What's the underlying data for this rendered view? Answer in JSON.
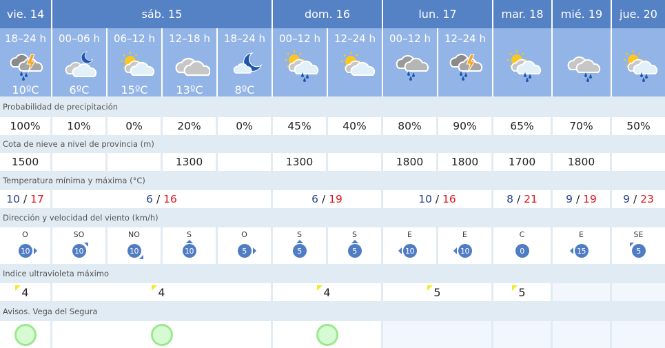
{
  "days": [
    {
      "label": "vie. 14",
      "span": 1
    },
    {
      "label": "sáb. 15",
      "span": 4
    },
    {
      "label": "dom. 16",
      "span": 2
    },
    {
      "label": "lun. 17",
      "span": 2
    },
    {
      "label": "mar. 18",
      "span": 1
    },
    {
      "label": "mié. 19",
      "span": 1
    },
    {
      "label": "jue. 20",
      "span": 1
    }
  ],
  "periods": [
    {
      "label": "18–24 h",
      "icon": "storm-rain",
      "temp": "10ºC"
    },
    {
      "label": "00–06 h",
      "icon": "night-partly-cloudy",
      "temp": "6ºC"
    },
    {
      "label": "06–12 h",
      "icon": "sun-clouds",
      "temp": "15ºC"
    },
    {
      "label": "12–18 h",
      "icon": "cloudy",
      "temp": "13ºC"
    },
    {
      "label": "18–24 h",
      "icon": "moon-cloud",
      "temp": "8ºC"
    },
    {
      "label": "00–12 h",
      "icon": "sun-cloud-rain",
      "temp": ""
    },
    {
      "label": "12–24 h",
      "icon": "sun-clouds",
      "temp": ""
    },
    {
      "label": "00–12 h",
      "icon": "rain-clouds",
      "temp": ""
    },
    {
      "label": "12–24 h",
      "icon": "storm-rain",
      "temp": ""
    },
    {
      "label": "",
      "icon": "sun-cloud-rain",
      "temp": ""
    },
    {
      "label": "",
      "icon": "cloudy-light-rain",
      "temp": ""
    },
    {
      "label": "",
      "icon": "sun-cloud-rain",
      "temp": ""
    }
  ],
  "labels": {
    "precip": "Probabilidad de precipitación",
    "snow": "Cota de nieve a nivel de provincia (m)",
    "temp": "Temperatura mínima y máxima (°C)",
    "wind": "Dirección y velocidad del viento (km/h)",
    "uv": "Indice ultravioleta máximo",
    "warnings": "Avisos. Vega del Segura"
  },
  "precip": [
    "100%",
    "10%",
    "0%",
    "20%",
    "0%",
    "45%",
    "40%",
    "80%",
    "90%",
    "65%",
    "70%",
    "50%"
  ],
  "snow": [
    "1500",
    "",
    "",
    "1300",
    "",
    "1300",
    "",
    "1800",
    "1800",
    "1700",
    "1800",
    ""
  ],
  "temps": [
    {
      "min": "10",
      "max": "17",
      "span": 1
    },
    {
      "min": "6",
      "max": "16",
      "span": 4
    },
    {
      "min": "6",
      "max": "19",
      "span": 2
    },
    {
      "min": "10",
      "max": "16",
      "span": 2
    },
    {
      "min": "8",
      "max": "21",
      "span": 1
    },
    {
      "min": "9",
      "max": "19",
      "span": 1
    },
    {
      "min": "9",
      "max": "23",
      "span": 1
    }
  ],
  "wind": [
    {
      "dir": "O",
      "speed": "10"
    },
    {
      "dir": "SO",
      "speed": "10"
    },
    {
      "dir": "NO",
      "speed": "10"
    },
    {
      "dir": "S",
      "speed": "10"
    },
    {
      "dir": "O",
      "speed": "5"
    },
    {
      "dir": "S",
      "speed": "5"
    },
    {
      "dir": "S",
      "speed": "5"
    },
    {
      "dir": "E",
      "speed": "10"
    },
    {
      "dir": "E",
      "speed": "10"
    },
    {
      "dir": "C",
      "speed": "0"
    },
    {
      "dir": "E",
      "speed": "15"
    },
    {
      "dir": "SE",
      "speed": "5"
    }
  ],
  "uv": [
    {
      "value": "4",
      "span": 1
    },
    {
      "value": "4",
      "span": 4
    },
    {
      "value": "4",
      "span": 2
    },
    {
      "value": "5",
      "span": 2
    },
    {
      "value": "5",
      "span": 1
    },
    {
      "value": null,
      "span": 1
    },
    {
      "value": null,
      "span": 1
    }
  ],
  "warnings": [
    {
      "level": "green",
      "span": 1
    },
    {
      "level": "green",
      "span": 4
    },
    {
      "level": "green",
      "span": 2
    },
    {
      "level": null,
      "span": 2
    },
    {
      "level": null,
      "span": 1
    },
    {
      "level": null,
      "span": 1
    },
    {
      "level": null,
      "span": 1
    }
  ],
  "colors": {
    "header": "#5581c5",
    "subheader": "#93b4e6",
    "min_temp": "#24408e",
    "max_temp": "#e0141e",
    "wind": "#4f7cc3",
    "uv_moderate": "#f2ea2a",
    "warning_green": "#9be88f"
  }
}
